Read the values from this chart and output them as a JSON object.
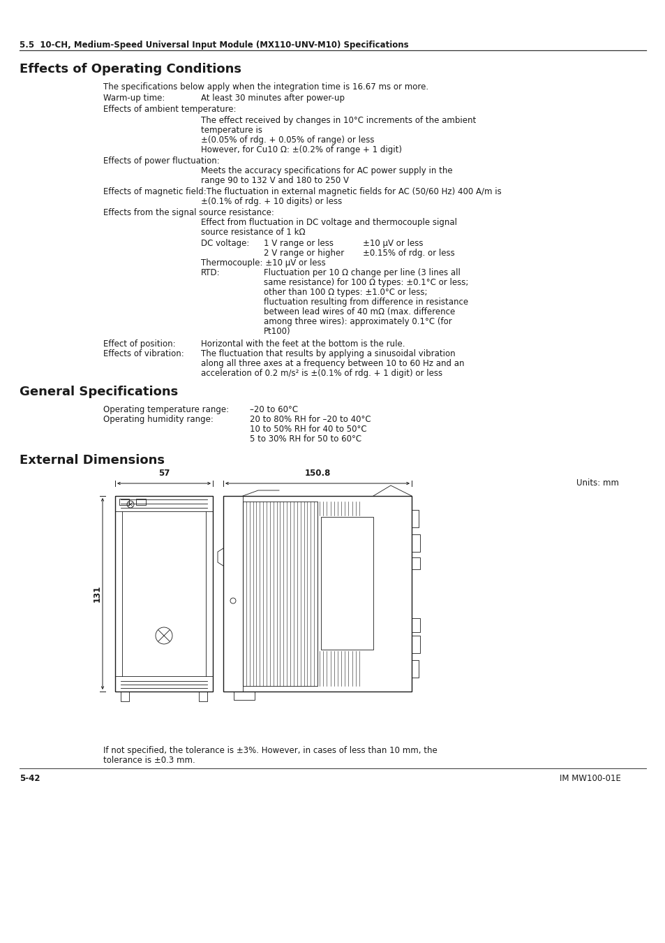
{
  "header_text": "5.5  10-CH, Medium-Speed Universal Input Module (MX110-UNV-M10) Specifications",
  "section1_title": "Effects of Operating Conditions",
  "section2_title": "General Specifications",
  "section3_title": "External Dimensions",
  "bg_color": "#ffffff",
  "text_color": "#1a1a1a",
  "body_font": 8.5,
  "title_font": 13,
  "header_font": 8.5,
  "footer_font": 8.5,
  "dim_57": "57",
  "dim_1508": "150.8",
  "dim_131": "131"
}
